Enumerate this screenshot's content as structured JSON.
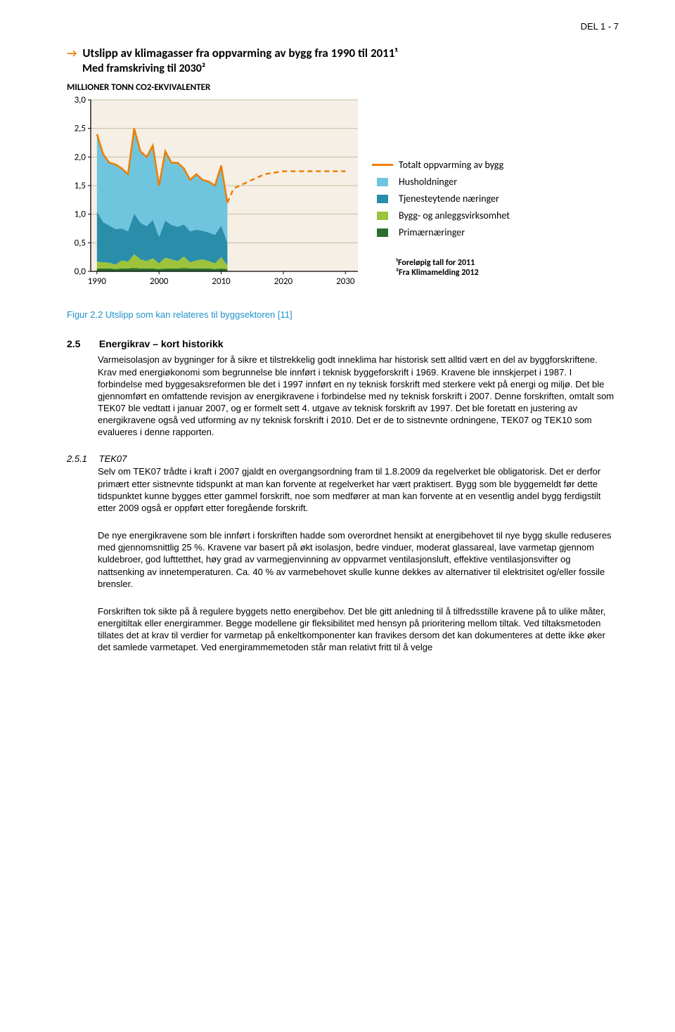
{
  "header": {
    "page_label": "DEL 1 - 7"
  },
  "chart": {
    "type": "stacked-area-with-line",
    "title_prefix_icon": "→",
    "title": "Utslipp av klimagasser fra oppvarming av bygg fra 1990 til 2011¹",
    "subtitle": "Med framskriving til 2030²",
    "y_axis_title": "MILLIONER TONN CO2-EKVIVALENTER",
    "footnote1": "¹Foreløpig tall for 2011",
    "footnote2": "²Fra Klimamelding 2012",
    "xlim": [
      1989,
      2032
    ],
    "ylim": [
      0,
      3.0
    ],
    "ytick_step": 0.5,
    "yticks": [
      "0,0",
      "0,5",
      "1,0",
      "1,5",
      "2,0",
      "2,5",
      "3,0"
    ],
    "xticks": [
      1990,
      2000,
      2010,
      2020,
      2030
    ],
    "background_color": "#f5efe5",
    "grid_color": "#c9bda4",
    "axis_color": "#000000",
    "line_color": "#ef7d00",
    "years": [
      1990,
      1991,
      1992,
      1993,
      1994,
      1995,
      1996,
      1997,
      1998,
      1999,
      2000,
      2001,
      2002,
      2003,
      2004,
      2005,
      2006,
      2007,
      2008,
      2009,
      2010,
      2011
    ],
    "series": {
      "primar": {
        "label": "Primærnæringer",
        "color": "#2c6e2f",
        "values": [
          0.05,
          0.05,
          0.05,
          0.04,
          0.05,
          0.05,
          0.06,
          0.05,
          0.05,
          0.05,
          0.04,
          0.05,
          0.05,
          0.05,
          0.06,
          0.05,
          0.05,
          0.05,
          0.05,
          0.04,
          0.05,
          0.04
        ]
      },
      "bygg_anlegg": {
        "label": "Bygg- og anleggsvirksomhet",
        "color": "#9cc33b",
        "values": [
          0.12,
          0.11,
          0.1,
          0.08,
          0.14,
          0.12,
          0.24,
          0.16,
          0.13,
          0.18,
          0.1,
          0.19,
          0.16,
          0.13,
          0.2,
          0.11,
          0.14,
          0.16,
          0.13,
          0.1,
          0.2,
          0.06
        ]
      },
      "tjeneste": {
        "label": "Tjenesteytende næringer",
        "color": "#2a8eab",
        "values": [
          0.88,
          0.7,
          0.65,
          0.62,
          0.56,
          0.53,
          0.71,
          0.64,
          0.61,
          0.67,
          0.46,
          0.65,
          0.6,
          0.6,
          0.56,
          0.54,
          0.54,
          0.5,
          0.5,
          0.5,
          0.55,
          0.4
        ]
      },
      "husholdninger": {
        "label": "Husholdninger",
        "color": "#6fc5dd",
        "values": [
          1.35,
          1.19,
          1.1,
          1.13,
          1.05,
          1.0,
          1.49,
          1.25,
          1.21,
          1.3,
          0.9,
          1.21,
          1.09,
          1.12,
          0.98,
          0.9,
          0.97,
          0.89,
          0.89,
          0.86,
          1.05,
          0.7
        ]
      }
    },
    "legend_order": [
      "line",
      "husholdninger",
      "tjeneste",
      "bygg_anlegg",
      "primar"
    ],
    "legend_line_label": "Totalt oppvarming av bygg",
    "projection": {
      "x": [
        2012,
        2017,
        2020,
        2030
      ],
      "y": [
        1.45,
        1.7,
        1.75,
        1.75
      ]
    }
  },
  "caption": {
    "text": "Figur 2.2 Utslipp som kan relateres til byggsektoren [11]"
  },
  "section25": {
    "number": "2.5",
    "title": "Energikrav – kort historikk",
    "body": "Varmeisolasjon av bygninger for å sikre et tilstrekkelig godt inneklima har historisk sett alltid vært en del av byggforskriftene. Krav med energiøkonomi som begrunnelse ble innført i teknisk byggeforskrift i 1969. Kravene ble innskjerpet i 1987. I forbindelse med byggesaksreformen ble det i 1997 innført en ny teknisk forskrift med sterkere vekt på energi og miljø. Det ble gjennomført en omfattende revisjon av energikravene i forbindelse med ny teknisk forskrift i 2007. Denne forskriften, omtalt som TEK07 ble vedtatt i januar 2007, og er formelt sett 4. utgave av teknisk forskrift av 1997. Det ble foretatt en justering av energikravene også ved utforming av ny teknisk forskrift i 2010. Det er de to sistnevnte ordningene, TEK07 og TEK10 som evalueres i denne rapporten."
  },
  "section251": {
    "number": "2.5.1",
    "title": "TEK07",
    "p1": "Selv om TEK07 trådte i kraft i 2007 gjaldt en overgangsordning fram til 1.8.2009 da regelverket ble obligatorisk. Det er derfor primært etter sistnevnte tidspunkt at man kan forvente at regelverket har vært praktisert. Bygg som ble byggemeldt før dette tidspunktet kunne bygges etter gammel forskrift, noe som medfører at man kan forvente at en vesentlig andel bygg ferdigstilt etter 2009 også er oppført etter foregående forskrift.",
    "p2": "De nye energikravene som ble innført i forskriften hadde som overordnet hensikt at energibehovet til nye bygg skulle reduseres med gjennomsnittlig 25 %. Kravene var basert på økt isolasjon, bedre vinduer, moderat glassareal, lave varmetap gjennom kuldebroer, god lufttetthet, høy grad av varmegjenvinning av oppvarmet ventilasjonsluft, effektive ventilasjonsvifter og nattsenking av innetemperaturen. Ca. 40 % av varmebehovet skulle kunne dekkes av alternativer til elektrisitet og/eller fossile brensler.",
    "p3": "Forskriften tok sikte på å regulere byggets netto energibehov. Det ble gitt anledning til å tilfredsstille kravene på to ulike måter, energitiltak eller energirammer.  Begge modellene gir fleksibilitet med hensyn på prioritering mellom tiltak. Ved tiltaksmetoden tillates det at krav til verdier for varmetap på enkeltkomponenter kan fravikes dersom det kan dokumenteres at dette ikke øker det samlede varmetapet. Ved energirammemetoden står man relativt fritt til å velge"
  }
}
